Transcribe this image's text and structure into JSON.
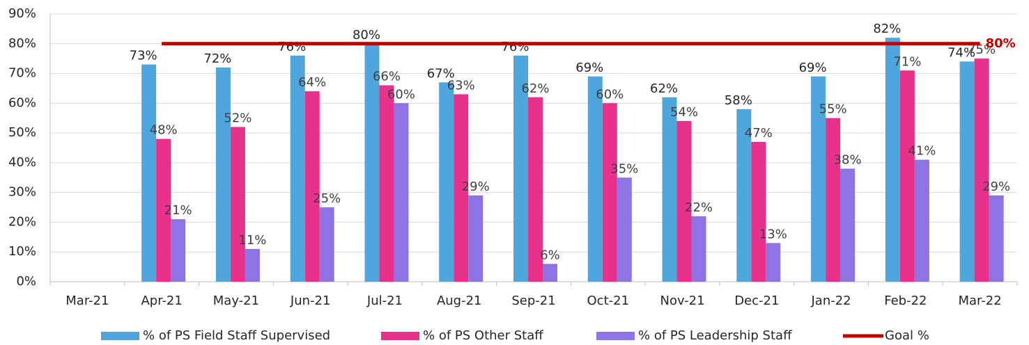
{
  "chart_data": {
    "type": "bar",
    "categories": [
      "Mar-21",
      "Apr-21",
      "May-21",
      "Jun-21",
      "Jul-21",
      "Aug-21",
      "Sep-21",
      "Oct-21",
      "Nov-21",
      "Dec-21",
      "Jan-22",
      "Feb-22",
      "Mar-22"
    ],
    "series": [
      {
        "name": "% of PS Field Staff Supervised",
        "color": "#4ea6dc",
        "values": [
          null,
          73,
          72,
          76,
          80,
          67,
          76,
          69,
          62,
          58,
          69,
          82,
          74
        ],
        "value_labels": [
          null,
          "73%",
          "72%",
          "76%",
          "80%",
          "67%",
          "76%",
          "69%",
          "62%",
          "58%",
          "69%",
          "82%",
          "74%"
        ]
      },
      {
        "name": "% of PS Other Staff",
        "color": "#e8318a",
        "values": [
          null,
          48,
          52,
          64,
          66,
          63,
          62,
          60,
          54,
          47,
          55,
          71,
          75
        ],
        "value_labels": [
          null,
          "48%",
          "52%",
          "64%",
          "66%",
          "63%",
          "62%",
          "60%",
          "54%",
          "47%",
          "55%",
          "71%",
          "75%"
        ]
      },
      {
        "name": "% of PS Leadership Staff",
        "color": "#8e73e2",
        "values": [
          null,
          21,
          11,
          25,
          60,
          29,
          6,
          35,
          22,
          13,
          38,
          41,
          29
        ],
        "value_labels": [
          null,
          "21%",
          "11%",
          "25%",
          "60%",
          "29%",
          "6%",
          "35%",
          "22%",
          "13%",
          "38%",
          "41%",
          "29%"
        ]
      },
      {
        "name": "Goal %",
        "color": "#c00000",
        "type": "line",
        "values": [
          null,
          80,
          80,
          80,
          80,
          80,
          80,
          80,
          80,
          80,
          80,
          80,
          80
        ],
        "value_labels": [
          null,
          null,
          null,
          null,
          null,
          null,
          null,
          null,
          null,
          null,
          null,
          null,
          "80%"
        ]
      }
    ],
    "ylim": [
      0,
      90
    ],
    "yticks": [
      {
        "value": 0,
        "label": "0%"
      },
      {
        "value": 10,
        "label": "10%"
      },
      {
        "value": 20,
        "label": "20%"
      },
      {
        "value": 30,
        "label": "30%"
      },
      {
        "value": 40,
        "label": "40%"
      },
      {
        "value": 50,
        "label": "50%"
      },
      {
        "value": 60,
        "label": "60%"
      },
      {
        "value": 70,
        "label": "70%"
      },
      {
        "value": 80,
        "label": "80%"
      },
      {
        "value": 90,
        "label": "90%"
      }
    ],
    "grid": true,
    "legend": "bottom"
  }
}
